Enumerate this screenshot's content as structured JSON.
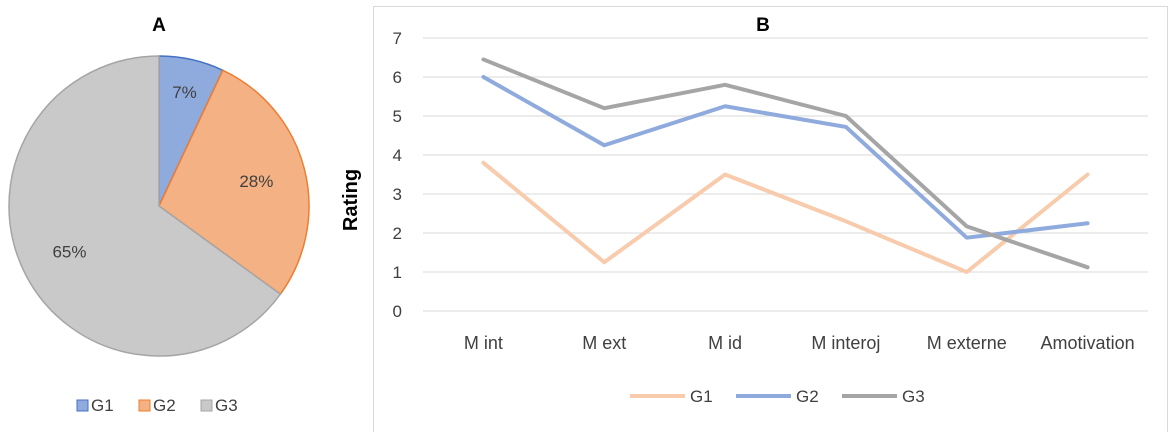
{
  "chart_data": [
    {
      "type": "pie",
      "title": "A",
      "labels": [
        "G1",
        "G2",
        "G3"
      ],
      "values": [
        7,
        28,
        65
      ],
      "value_labels": [
        "7%",
        "28%",
        "65%"
      ],
      "colors": [
        "#8faadc",
        "#f4b183",
        "#c9c9c9"
      ],
      "edge_colors": [
        "#4472c4",
        "#ed7d31",
        "#a5a5a5"
      ],
      "legend_position": "bottom"
    },
    {
      "type": "line",
      "title": "B",
      "categories": [
        "M int",
        "M ext",
        "M id",
        "M interoj",
        "M externe",
        "Amotivation"
      ],
      "series": [
        {
          "name": "G1",
          "values": [
            3.8,
            1.25,
            3.5,
            2.3,
            1.0,
            3.5
          ],
          "color": "#f8cbad"
        },
        {
          "name": "G2",
          "values": [
            6.0,
            4.25,
            5.25,
            4.72,
            1.88,
            2.25
          ],
          "color": "#8faadc"
        },
        {
          "name": "G3",
          "values": [
            6.45,
            5.2,
            5.8,
            5.0,
            2.17,
            1.12
          ],
          "color": "#a5a5a5"
        }
      ],
      "ylabel": "Rating",
      "xlabel": "",
      "ylim": [
        0,
        7
      ],
      "yticks": [
        "0",
        "1",
        "2",
        "3",
        "4",
        "5",
        "6",
        "7"
      ],
      "grid": true,
      "legend_position": "bottom"
    }
  ]
}
